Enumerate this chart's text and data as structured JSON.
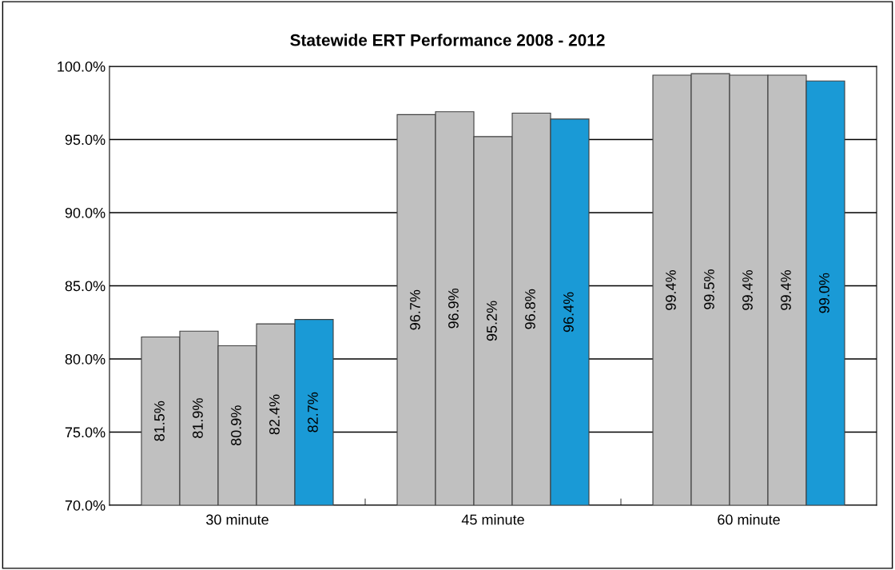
{
  "chart_data": {
    "type": "bar",
    "title": "Statewide ERT Performance 2008 - 2012",
    "categories": [
      "30 minute",
      "45 minute",
      "60 minute"
    ],
    "series": [
      {
        "color": "#c0c0c0",
        "values": [
          81.5,
          96.7,
          99.4
        ],
        "value_labels": [
          "81.5%",
          "96.7%",
          "99.4%"
        ]
      },
      {
        "color": "#c0c0c0",
        "values": [
          81.9,
          96.9,
          99.5
        ],
        "value_labels": [
          "81.9%",
          "96.9%",
          "99.5%"
        ]
      },
      {
        "color": "#c0c0c0",
        "values": [
          80.9,
          95.2,
          99.4
        ],
        "value_labels": [
          "80.9%",
          "95.2%",
          "99.4%"
        ]
      },
      {
        "color": "#c0c0c0",
        "values": [
          82.4,
          96.8,
          99.4
        ],
        "value_labels": [
          "82.4%",
          "96.8%",
          "99.4%"
        ]
      },
      {
        "color": "#1a9ad6",
        "values": [
          82.7,
          96.4,
          99.0
        ],
        "value_labels": [
          "82.7%",
          "96.4%",
          "99.0%"
        ]
      }
    ],
    "ylim": [
      70,
      100
    ],
    "yticks": [
      {
        "value": 70,
        "label": "70.0%"
      },
      {
        "value": 75,
        "label": "75.0%"
      },
      {
        "value": 80,
        "label": "80.0%"
      },
      {
        "value": 85,
        "label": "85.0%"
      },
      {
        "value": 90,
        "label": "90.0%"
      },
      {
        "value": 95,
        "label": "95.0%"
      },
      {
        "value": 100,
        "label": "100.0%"
      }
    ],
    "grid": "y",
    "legend": false
  }
}
